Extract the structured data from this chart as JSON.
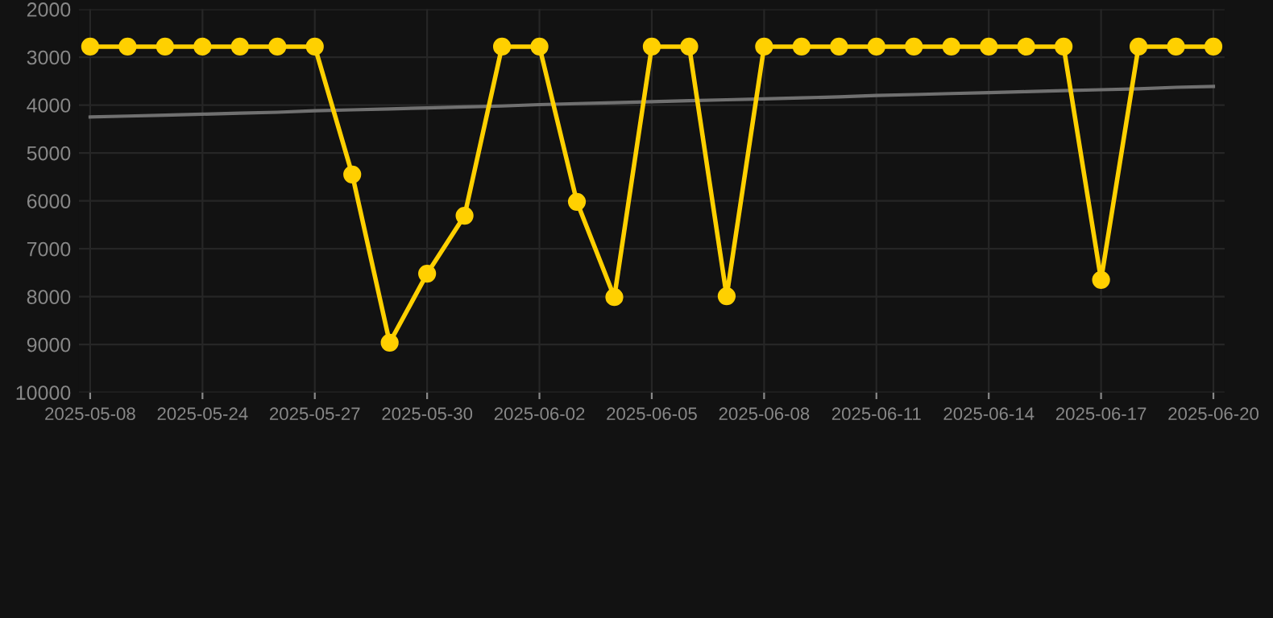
{
  "chart_data": {
    "type": "line",
    "categories": [
      "2025-05-08",
      null,
      null,
      "2025-05-24",
      null,
      null,
      "2025-05-27",
      null,
      null,
      "2025-05-30",
      null,
      null,
      "2025-06-02",
      null,
      null,
      "2025-06-05",
      null,
      null,
      "2025-06-08",
      null,
      null,
      "2025-06-11",
      null,
      null,
      "2025-06-14",
      null,
      null,
      "2025-06-17",
      null,
      null,
      "2025-06-20"
    ],
    "series": [
      {
        "color": "#ffd000",
        "marker": "circle",
        "values": [
          2780,
          2780,
          2780,
          2780,
          2780,
          2780,
          2780,
          5450,
          8960,
          7520,
          6310,
          2780,
          2780,
          6020,
          8010,
          2780,
          2780,
          7990,
          2780,
          2780,
          2780,
          2780,
          2780,
          2780,
          2780,
          2780,
          2780,
          7650,
          2780,
          2780,
          2780
        ]
      },
      {
        "type": "line",
        "color": "#707070",
        "marker": "none",
        "values": [
          4250,
          4230,
          4210,
          4190,
          4170,
          4150,
          4120,
          4100,
          4080,
          4060,
          4040,
          4020,
          3990,
          3970,
          3950,
          3930,
          3910,
          3890,
          3870,
          3850,
          3830,
          3800,
          3780,
          3760,
          3740,
          3720,
          3700,
          3680,
          3660,
          3630,
          3610
        ]
      }
    ],
    "ylim": [
      10000,
      2000
    ],
    "yticks": [
      2000,
      3000,
      4000,
      5000,
      6000,
      7000,
      8000,
      9000,
      10000
    ],
    "grid": true
  }
}
